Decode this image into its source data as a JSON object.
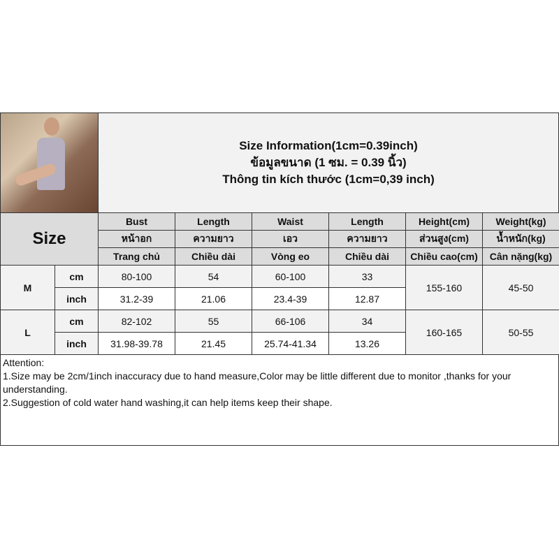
{
  "title": {
    "lines": [
      "Size Information(1cm=0.39inch)",
      "ข้อมูลขนาด (1 ซม. = 0.39 นิ้ว)",
      "Thông tin kích thước (1cm=0,39 inch)"
    ]
  },
  "photo": {
    "icon": "product-photo"
  },
  "table": {
    "size_label": "Size",
    "columns": [
      {
        "en": "Bust",
        "th": "หน้าอก",
        "vi": "Trang chủ"
      },
      {
        "en": "Length",
        "th": "ความยาว",
        "vi": "Chiều dài"
      },
      {
        "en": "Waist",
        "th": "เอว",
        "vi": "Vòng eo"
      },
      {
        "en": "Length",
        "th": "ความยาว",
        "vi": "Chiều dài"
      },
      {
        "en": "Height(cm)",
        "th": "ส่วนสูง(cm)",
        "vi": "Chiều cao(cm)"
      },
      {
        "en": "Weight(kg)",
        "th": "น้ำหนัก(kg)",
        "vi": "Cân nặng(kg)"
      }
    ],
    "rows": [
      {
        "size": "M",
        "cm_label": "cm",
        "inch_label": "inch",
        "cm": [
          "80-100",
          "54",
          "60-100",
          "33"
        ],
        "inch": [
          "31.2-39",
          "21.06",
          "23.4-39",
          "12.87"
        ],
        "height": "155-160",
        "weight": "45-50"
      },
      {
        "size": "L",
        "cm_label": "cm",
        "inch_label": "inch",
        "cm": [
          "82-102",
          "55",
          "66-106",
          "34"
        ],
        "inch": [
          "31.98-39.78",
          "21.45",
          "25.74-41.34",
          "13.26"
        ],
        "height": "160-165",
        "weight": "50-55"
      }
    ]
  },
  "attention": {
    "heading": "Attention:",
    "lines": [
      "1.Size may be 2cm/1inch inaccuracy due to hand measure,Color may be little different due to monitor ,thanks for your understanding.",
      "2.Suggestion of cold water hand washing,it can help items keep their shape."
    ]
  }
}
